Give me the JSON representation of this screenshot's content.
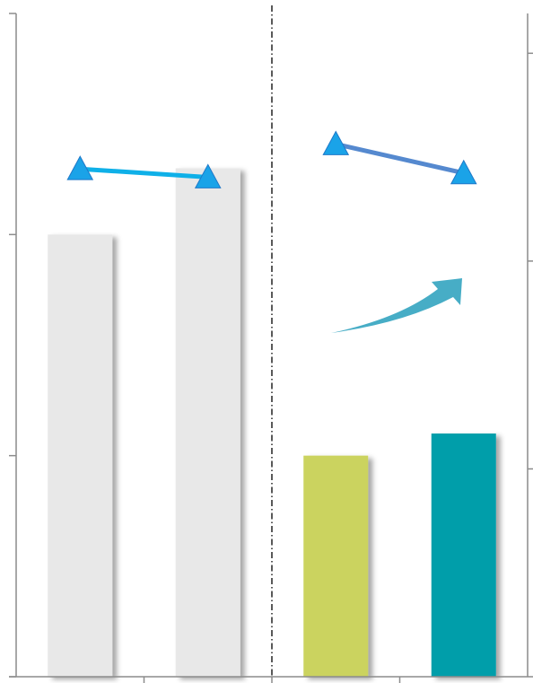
{
  "chart_data": {
    "type": "bar",
    "title": "",
    "xlabel": "",
    "ylabel": "",
    "categories": [
      "",
      "",
      "",
      ""
    ],
    "bars": {
      "values": [
        2.0,
        2.3,
        1.0,
        1.1
      ],
      "colors": [
        "#e8e8e8",
        "#e8e8e8",
        "#cbd35f",
        "#009eaa"
      ],
      "ylim": [
        0,
        3
      ]
    },
    "lines": {
      "marker": "triangle",
      "marker_color": "#1aa3e8",
      "segments": [
        {
          "x_index": [
            0,
            1
          ],
          "values": [
            2.45,
            2.41
          ],
          "color": "#0fb0e8"
        },
        {
          "x_index": [
            2,
            3
          ],
          "values": [
            2.57,
            2.43
          ],
          "color": "#5589cf"
        }
      ],
      "ylim": [
        0,
        3.2
      ]
    },
    "divider_between": [
      1,
      2
    ],
    "annotation": {
      "type": "arrow",
      "direction": "up-right",
      "color": "#47adc6"
    },
    "left_axis_ticks": 3,
    "right_axis_ticks": 3,
    "grid": false,
    "legend": "none"
  }
}
